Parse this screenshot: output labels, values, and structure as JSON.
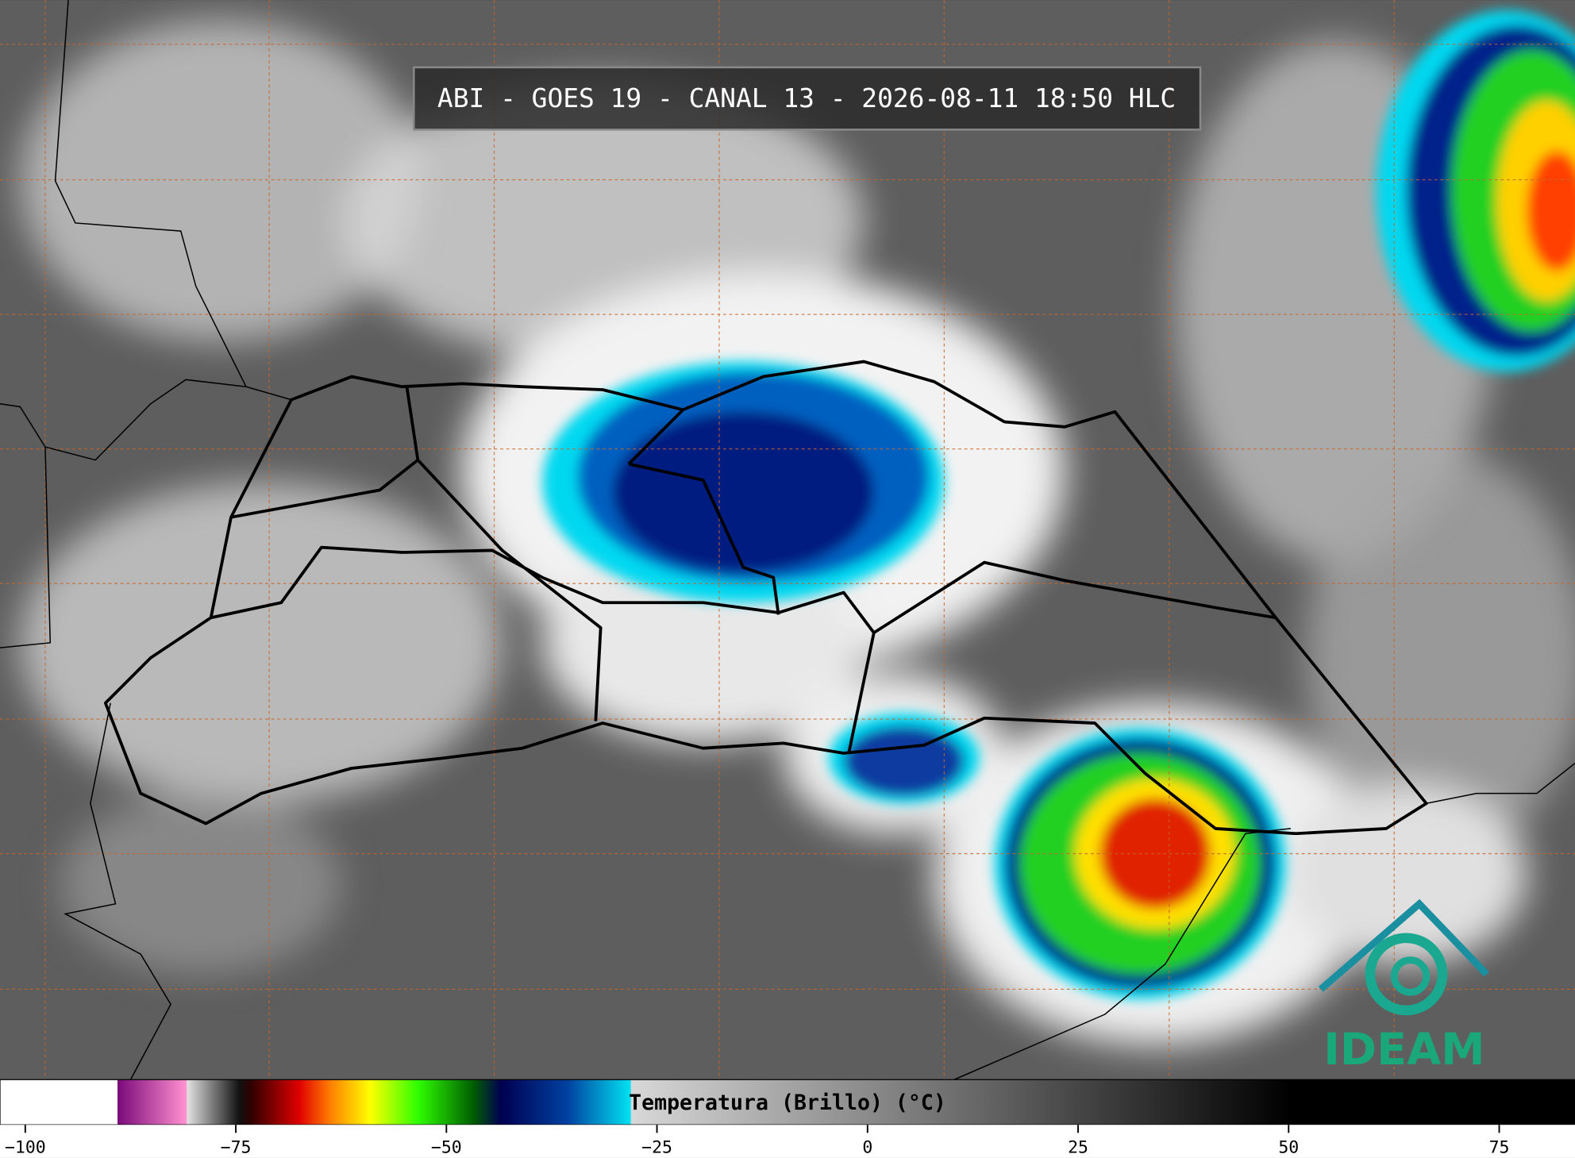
{
  "header": {
    "title": "ABI - GOES 19 - CANAL 13 - 2026-08-11 18:50 HLC"
  },
  "colorbar": {
    "label": "Temperatura (Brillo) (°C)",
    "lim": [
      -103,
      84
    ],
    "ticks": [
      {
        "value": -100,
        "label": "−100"
      },
      {
        "value": -75,
        "label": "−75"
      },
      {
        "value": -50,
        "label": "−50"
      },
      {
        "value": -25,
        "label": "−25"
      },
      0,
      25,
      50,
      75
    ]
  },
  "logo": {
    "text": "IDEAM"
  }
}
